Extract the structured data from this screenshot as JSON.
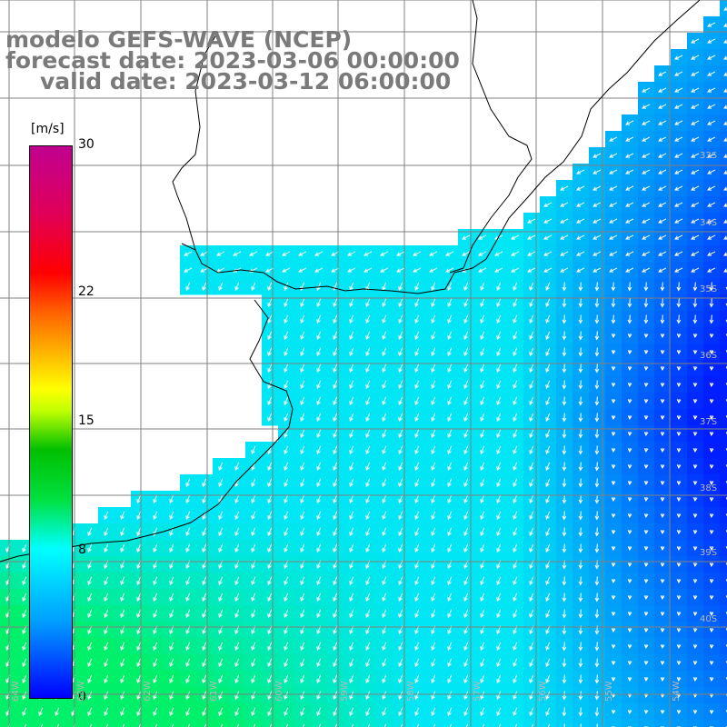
{
  "title": {
    "line1": "modelo GEFS-WAVE (NCEP)",
    "line2": "forecast date: 2023-03-06 00:00:00",
    "line3": "valid date: 2023-03-12 06:00:00"
  },
  "colorbar": {
    "unit": "[m/s]",
    "ticks": [
      {
        "label": "30",
        "value": 30
      },
      {
        "label": "22",
        "value": 22
      },
      {
        "label": "15",
        "value": 15
      },
      {
        "label": "8",
        "value": 8
      },
      {
        "label": "0",
        "value": 0
      }
    ],
    "min": 0,
    "max": 30
  },
  "lat_labels": [
    "33S",
    "34S",
    "35S",
    "36S",
    "37S",
    "38S",
    "39S",
    "40S"
  ],
  "lon_labels": [
    "64W",
    "63W",
    "62W",
    "61W",
    "60W",
    "59W",
    "58W",
    "57W",
    "56W",
    "55W",
    "54W"
  ],
  "colors": {
    "land": "#ffffff",
    "grid": "#808080",
    "arrow": "#ffffff",
    "title": "#7a7a7a"
  }
}
